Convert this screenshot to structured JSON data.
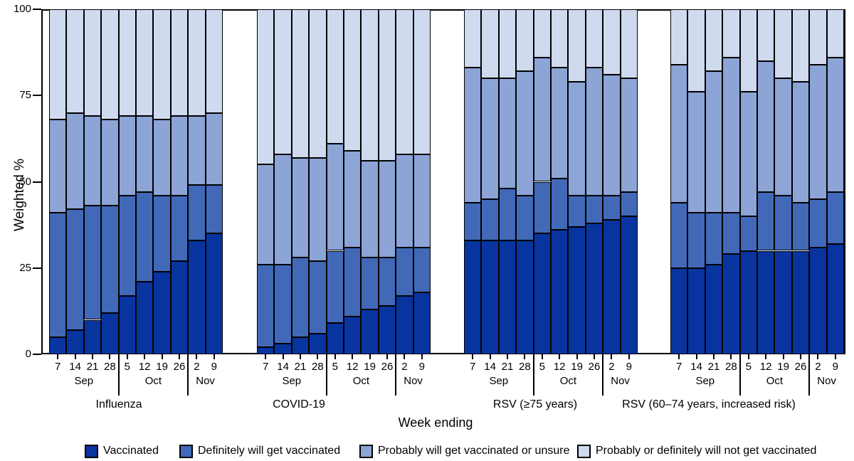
{
  "chart_data": {
    "type": "bar",
    "stacked": true,
    "xlabel": "Week ending",
    "ylabel": "Weighted %",
    "ylim": [
      0,
      100
    ],
    "yticks": [
      0,
      25,
      50,
      75,
      100
    ],
    "grid": false,
    "legend_position": "bottom",
    "categories": [
      "7",
      "14",
      "21",
      "28",
      "5",
      "12",
      "19",
      "26",
      "2",
      "9"
    ],
    "month_groups": [
      {
        "label": "Sep",
        "span": 4
      },
      {
        "label": "Oct",
        "span": 4
      },
      {
        "label": "Nov",
        "span": 2
      }
    ],
    "legend": [
      {
        "label": "Vaccinated",
        "color": "#0834a0"
      },
      {
        "label": "Definitely will get vaccinated",
        "color": "#4169b8"
      },
      {
        "label": "Probably will get vaccinated or unsure",
        "color": "#8ca4d6"
      },
      {
        "label": "Probably or definitely will not get vaccinated",
        "color": "#cfdaee"
      }
    ],
    "panels": [
      {
        "title": "Influenza",
        "series": [
          {
            "name": "Vaccinated",
            "values": [
              5,
              7,
              10,
              12,
              17,
              21,
              24,
              27,
              33,
              35
            ]
          },
          {
            "name": "Definitely will get vaccinated",
            "values": [
              36,
              35,
              33,
              31,
              29,
              26,
              22,
              19,
              16,
              14
            ]
          },
          {
            "name": "Probably will get vaccinated or unsure",
            "values": [
              27,
              28,
              26,
              25,
              23,
              22,
              22,
              23,
              20,
              21
            ]
          },
          {
            "name": "Probably or definitely will not get vaccinated",
            "values": [
              32,
              30,
              31,
              32,
              31,
              31,
              32,
              31,
              31,
              30
            ]
          }
        ]
      },
      {
        "title": "COVID-19",
        "series": [
          {
            "name": "Vaccinated",
            "values": [
              2,
              3,
              5,
              6,
              9,
              11,
              13,
              14,
              17,
              18
            ]
          },
          {
            "name": "Definitely will get vaccinated",
            "values": [
              24,
              23,
              23,
              21,
              21,
              20,
              15,
              14,
              14,
              13
            ]
          },
          {
            "name": "Probably will get vaccinated or unsure",
            "values": [
              29,
              32,
              29,
              30,
              31,
              28,
              28,
              28,
              27,
              27
            ]
          },
          {
            "name": "Probably or definitely will not get vaccinated",
            "values": [
              45,
              42,
              43,
              43,
              39,
              41,
              44,
              44,
              42,
              42
            ]
          }
        ]
      },
      {
        "title": "RSV (≥75 years)",
        "series": [
          {
            "name": "Vaccinated",
            "values": [
              33,
              33,
              33,
              33,
              35,
              36,
              37,
              38,
              39,
              40
            ]
          },
          {
            "name": "Definitely will get vaccinated",
            "values": [
              11,
              12,
              15,
              13,
              15,
              15,
              9,
              8,
              7,
              7
            ]
          },
          {
            "name": "Probably will get vaccinated or unsure",
            "values": [
              39,
              35,
              32,
              36,
              36,
              32,
              33,
              37,
              35,
              33
            ]
          },
          {
            "name": "Probably or definitely will not get vaccinated",
            "values": [
              17,
              20,
              20,
              18,
              14,
              17,
              21,
              17,
              19,
              20
            ]
          }
        ]
      },
      {
        "title": "RSV (60–74 years, increased risk)",
        "series": [
          {
            "name": "Vaccinated",
            "values": [
              25,
              25,
              26,
              29,
              30,
              30,
              30,
              30,
              31,
              32
            ]
          },
          {
            "name": "Definitely will get vaccinated",
            "values": [
              19,
              16,
              15,
              12,
              10,
              17,
              16,
              14,
              14,
              15
            ]
          },
          {
            "name": "Probably will get vaccinated or unsure",
            "values": [
              40,
              35,
              41,
              45,
              36,
              38,
              34,
              35,
              39,
              39
            ]
          },
          {
            "name": "Probably or definitely will not get vaccinated",
            "values": [
              16,
              24,
              18,
              14,
              24,
              15,
              20,
              21,
              16,
              14
            ]
          }
        ]
      }
    ]
  }
}
